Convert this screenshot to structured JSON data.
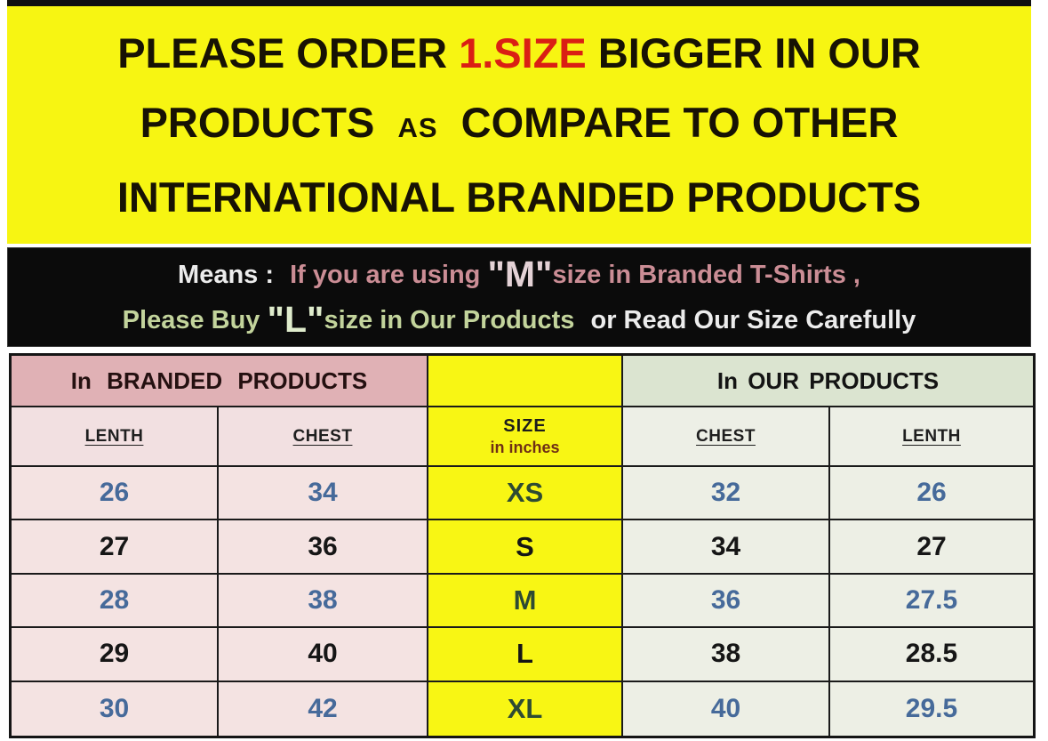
{
  "colors": {
    "banner_bg": "#f7f512",
    "accent_red": "#da1f14",
    "means_bg": "#0b0b0b",
    "rose_text": "#cb8d95",
    "green_text": "#c3d49c",
    "value_blue": "#466a9a",
    "branded_header_bg": "#e0b1b5",
    "our_header_bg": "#dbe4d0"
  },
  "banner": {
    "line1_pre": "PLEASE ORDER",
    "line1_red": "1.SIZE",
    "line1_post": "BIGGER IN OUR",
    "line2_pre": "PRODUCTS",
    "line2_small": "AS",
    "line2_post": "COMPARE TO OTHER",
    "line3": "INTERNATIONAL BRANDED PRODUCTS"
  },
  "means": {
    "label": "Means :",
    "l1_rose_pre": "If you are using",
    "l1_big": "\"M\"",
    "l1_rose_post": "size in Branded T-Shirts ,",
    "l2_green_pre": "Please Buy",
    "l2_big": "\"L\"",
    "l2_green_mid": "size in Our Products",
    "l2_white": "or Read Our Size Carefully"
  },
  "table": {
    "left_section_header": "In BRANDED PRODUCTS",
    "right_section_header": "In OUR PRODUCTS",
    "col_headers": {
      "branded_lenth": "LENTH",
      "branded_chest": "CHEST",
      "size": "SIZE",
      "size_sub": "in inches",
      "our_chest": "CHEST",
      "our_lenth": "LENTH"
    },
    "rows": [
      {
        "lenth_b": "26",
        "chest_b": "34",
        "size": "XS",
        "chest_o": "32",
        "lenth_o": "26"
      },
      {
        "lenth_b": "27",
        "chest_b": "36",
        "size": "S",
        "chest_o": "34",
        "lenth_o": "27"
      },
      {
        "lenth_b": "28",
        "chest_b": "38",
        "size": "M",
        "chest_o": "36",
        "lenth_o": "27.5"
      },
      {
        "lenth_b": "29",
        "chest_b": "40",
        "size": "L",
        "chest_o": "38",
        "lenth_o": "28.5"
      },
      {
        "lenth_b": "30",
        "chest_b": "42",
        "size": "XL",
        "chest_o": "40",
        "lenth_o": "29.5"
      }
    ]
  }
}
